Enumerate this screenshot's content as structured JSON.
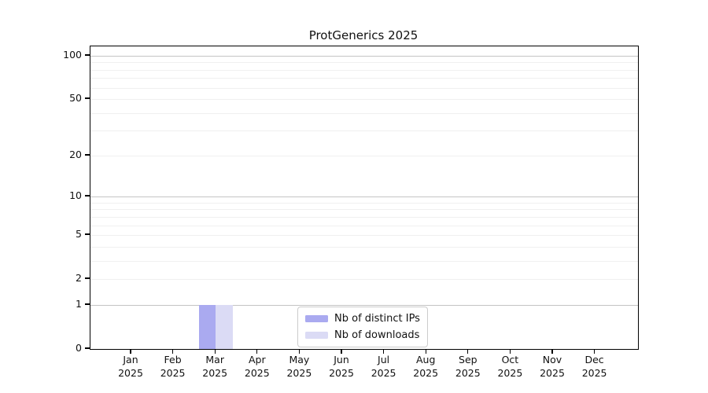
{
  "chart_data": {
    "type": "bar",
    "title": "ProtGenerics 2025",
    "categories": [
      "Jan",
      "Feb",
      "Mar",
      "Apr",
      "May",
      "Jun",
      "Jul",
      "Aug",
      "Sep",
      "Oct",
      "Nov",
      "Dec"
    ],
    "x_year_label": "2025",
    "series": [
      {
        "name": "Nb of distinct IPs",
        "color": "#aaaaf0",
        "values": [
          0,
          0,
          1,
          0,
          0,
          0,
          0,
          0,
          0,
          0,
          0,
          0
        ]
      },
      {
        "name": "Nb of downloads",
        "color": "#dbdbf5",
        "values": [
          0,
          0,
          1,
          0,
          0,
          0,
          0,
          0,
          0,
          0,
          0,
          0
        ]
      }
    ],
    "y_scale": "log1p",
    "ylim": [
      0,
      116
    ],
    "y_ticks": [
      {
        "label": "0",
        "value": 0
      },
      {
        "label": "1",
        "value": 1
      },
      {
        "label": "2",
        "value": 2
      },
      {
        "label": "5",
        "value": 5
      },
      {
        "label": "10",
        "value": 10
      },
      {
        "label": "20",
        "value": 20
      },
      {
        "label": "50",
        "value": 50
      },
      {
        "label": "100",
        "value": 100
      }
    ],
    "major_gridlines": [
      1,
      10,
      100
    ],
    "minor_gridlines": [
      2,
      3,
      4,
      5,
      6,
      7,
      8,
      9,
      20,
      30,
      40,
      50,
      60,
      70,
      80,
      90
    ],
    "grid": true,
    "legend_position": "bottom-center"
  },
  "colors": {
    "major_grid": "#c4c4c4",
    "minor_grid": "#f0f0f0",
    "spine": "#000000",
    "bar_distinct_ips": "#aaaaf0",
    "bar_downloads": "#dbdbf5"
  }
}
